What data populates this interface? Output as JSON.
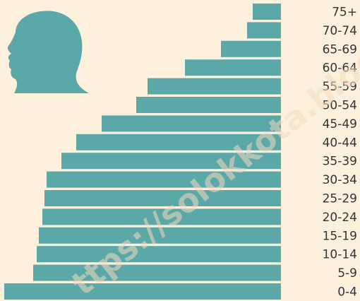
{
  "chart_data": {
    "type": "barh",
    "categories": [
      "75+",
      "70-74",
      "65-69",
      "60-64",
      "55-59",
      "50-54",
      "45-49",
      "40-44",
      "35-39",
      "30-34",
      "25-29",
      "20-24",
      "15-19",
      "10-14",
      "5-9",
      "0-4"
    ],
    "values": [
      40,
      48,
      85,
      136,
      189,
      205,
      254,
      290,
      311,
      332,
      335,
      338,
      343,
      346,
      351,
      392
    ],
    "color": "#5ba8a8",
    "watermark": "ttps://solokkota.blog"
  }
}
